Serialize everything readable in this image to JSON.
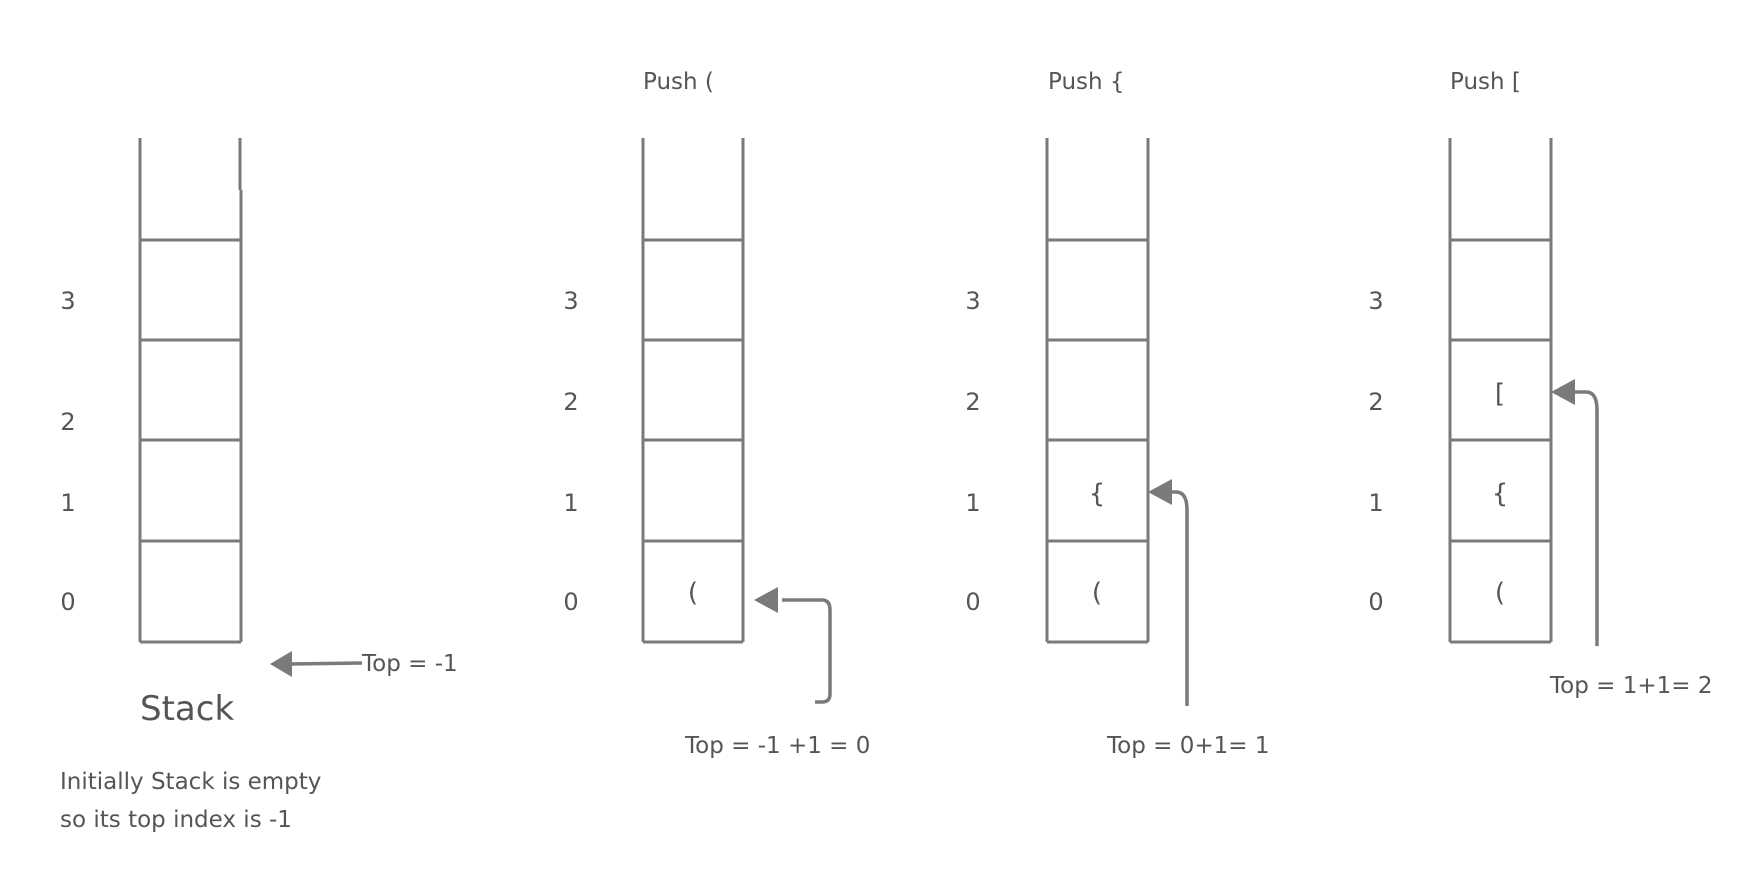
{
  "panels": [
    {
      "heading": "",
      "indices": [
        "3",
        "2",
        "1",
        "0"
      ],
      "cells": [
        "",
        "",
        "",
        ""
      ],
      "top_label": "Top = -1",
      "title": "Stack",
      "caption": [
        "Initially Stack is empty",
        "so its top index is -1"
      ]
    },
    {
      "heading": "Push (",
      "indices": [
        "3",
        "2",
        "1",
        "0"
      ],
      "cells": [
        "",
        "",
        "",
        "("
      ],
      "top_label": "Top = -1 +1 = 0"
    },
    {
      "heading": "Push {",
      "indices": [
        "3",
        "2",
        "1",
        "0"
      ],
      "cells": [
        "",
        "",
        "{",
        "("
      ],
      "top_label": "Top = 0+1= 1"
    },
    {
      "heading": "Push [",
      "indices": [
        "3",
        "2",
        "1",
        "0"
      ],
      "cells": [
        "",
        "[",
        "{",
        "("
      ],
      "top_label": "Top = 1+1= 2"
    }
  ]
}
